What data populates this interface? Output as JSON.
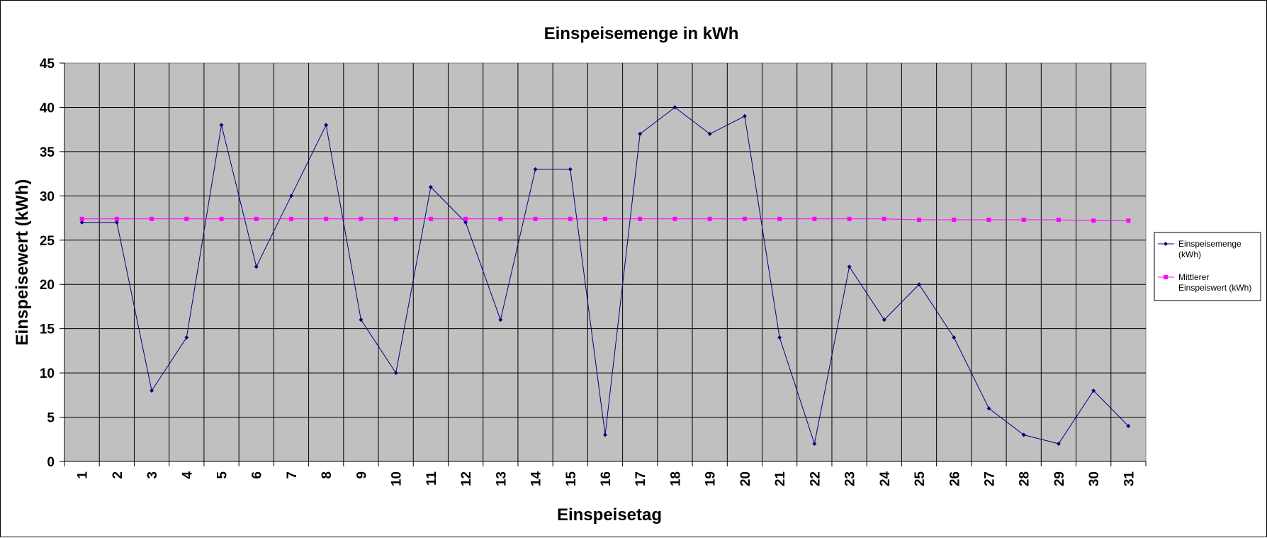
{
  "chart_data": {
    "type": "line",
    "title": "Einspeisemenge in kWh",
    "xlabel": "Einspeisetag",
    "ylabel": "Einspeisewert  (kWh)",
    "ylim": [
      0,
      45
    ],
    "yticks": [
      "0",
      "5",
      "10",
      "15",
      "20",
      "25",
      "30",
      "35",
      "40",
      "45"
    ],
    "categories": [
      "1",
      "2",
      "3",
      "4",
      "5",
      "6",
      "7",
      "8",
      "9",
      "10",
      "11",
      "12",
      "13",
      "14",
      "15",
      "16",
      "17",
      "18",
      "19",
      "20",
      "21",
      "22",
      "23",
      "24",
      "25",
      "26",
      "27",
      "28",
      "29",
      "30",
      "31"
    ],
    "grid": true,
    "plot_background": "#c0c0c0",
    "legend_position": "right",
    "series": [
      {
        "name": "Einspeisemenge (kWh)",
        "legend_lines": [
          "Einspeisemenge",
          "(kWh)"
        ],
        "color": "#000080",
        "marker": "diamond",
        "values": [
          27,
          27,
          8,
          14,
          38,
          22,
          30,
          38,
          16,
          10,
          31,
          27,
          16,
          33,
          33,
          3,
          37,
          40,
          37,
          39,
          14,
          2,
          22,
          16,
          20,
          14,
          6,
          3,
          2,
          8,
          4
        ]
      },
      {
        "name": "Mittlerer Einspeiswert (kWh)",
        "legend_lines": [
          "Mittlerer",
          "Einspeiswert (kWh)"
        ],
        "color": "#ff00ff",
        "marker": "square",
        "values": [
          27.4,
          27.4,
          27.4,
          27.4,
          27.4,
          27.4,
          27.4,
          27.4,
          27.4,
          27.4,
          27.4,
          27.4,
          27.4,
          27.4,
          27.4,
          27.4,
          27.4,
          27.4,
          27.4,
          27.4,
          27.4,
          27.4,
          27.4,
          27.4,
          27.3,
          27.3,
          27.3,
          27.3,
          27.3,
          27.2,
          27.2
        ]
      }
    ]
  }
}
